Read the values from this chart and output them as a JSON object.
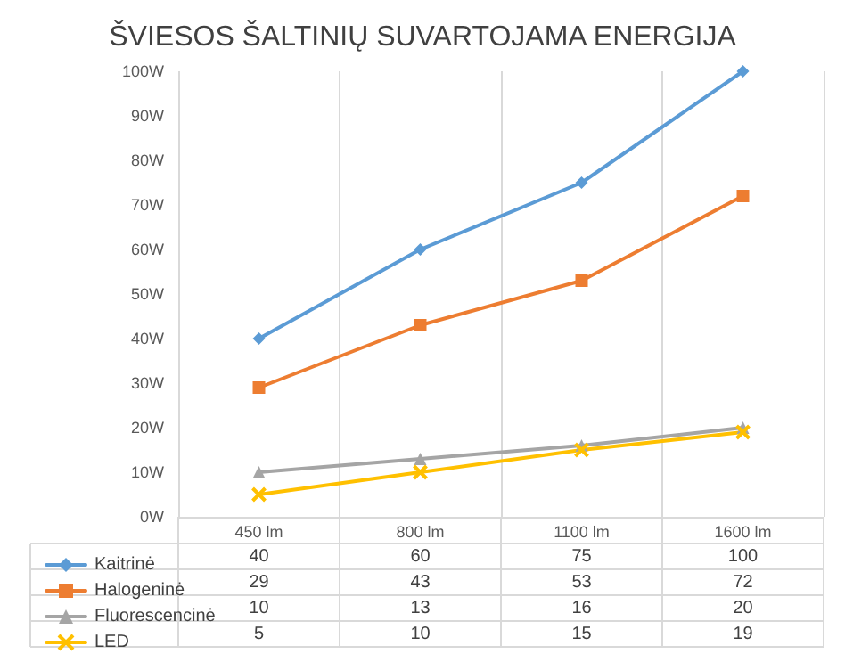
{
  "chart_data": {
    "type": "line",
    "title": "ŠVIESOS ŠALTINIŲ SUVARTOJAMA ENERGIJA",
    "categories": [
      "450 lm",
      "800 lm",
      "1100 lm",
      "1600 lm"
    ],
    "series": [
      {
        "name": "Kaitrinė",
        "color": "#5b9bd5",
        "marker": "diamond",
        "values": [
          40,
          60,
          75,
          100
        ]
      },
      {
        "name": "Halogeninė",
        "color": "#ed7d31",
        "marker": "square",
        "values": [
          29,
          43,
          53,
          72
        ]
      },
      {
        "name": "Fluorescencinė",
        "color": "#a5a5a5",
        "marker": "triangle",
        "values": [
          10,
          13,
          16,
          20
        ]
      },
      {
        "name": "LED",
        "color": "#ffc000",
        "marker": "cross",
        "values": [
          5,
          10,
          15,
          19
        ]
      }
    ],
    "ylim": [
      0,
      100
    ],
    "yticks": [
      {
        "value": 0,
        "label": "0W"
      },
      {
        "value": 10,
        "label": "10W"
      },
      {
        "value": 20,
        "label": "20W"
      },
      {
        "value": 30,
        "label": "30W"
      },
      {
        "value": 40,
        "label": "40W"
      },
      {
        "value": 50,
        "label": "50W"
      },
      {
        "value": 60,
        "label": "60W"
      },
      {
        "value": 70,
        "label": "70W"
      },
      {
        "value": 80,
        "label": "80W"
      },
      {
        "value": 90,
        "label": "90W"
      },
      {
        "value": 100,
        "label": "100W"
      }
    ],
    "grid": "x",
    "legend": "bottom left",
    "data_labels": true
  }
}
